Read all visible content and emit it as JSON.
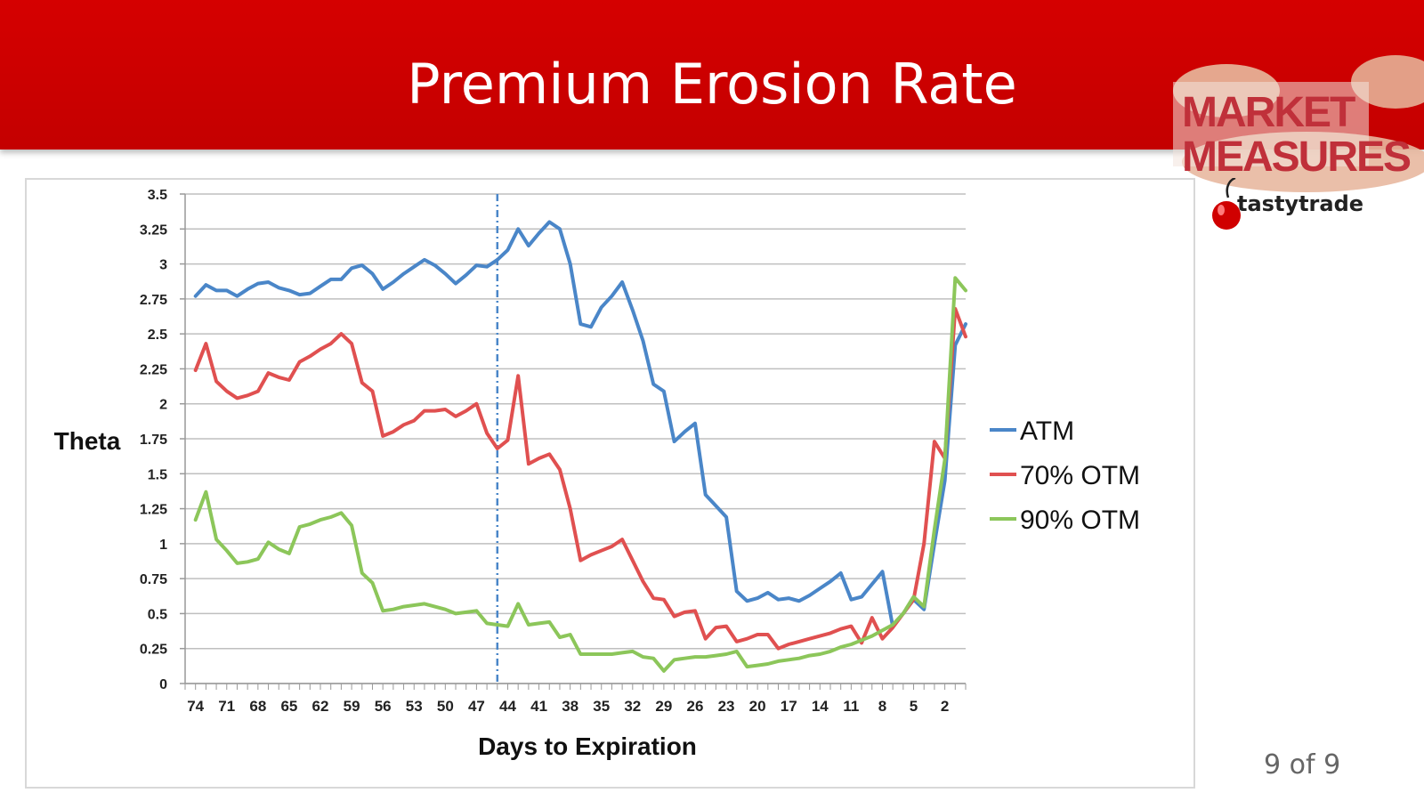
{
  "slide": {
    "title": "Premium Erosion Rate",
    "brand": "MARKET MEASURES",
    "sub_brand": "tastytrade",
    "page": "9 of 9",
    "accent_color": "#d50000"
  },
  "chart_data": {
    "type": "line",
    "title": "",
    "xlabel": "Days to Expiration",
    "ylabel": "Theta",
    "x_reversed": true,
    "xlim": [
      75,
      0
    ],
    "ylim": [
      0,
      3.5
    ],
    "x_ticks": [
      74,
      71,
      68,
      65,
      62,
      59,
      56,
      53,
      50,
      47,
      44,
      41,
      38,
      35,
      32,
      29,
      26,
      23,
      20,
      17,
      14,
      11,
      8,
      5,
      2
    ],
    "y_ticks": [
      "0",
      "0.25",
      "0.5",
      "0.75",
      "1",
      "1.25",
      "1.5",
      "1.75",
      "2",
      "2.25",
      "2.5",
      "2.75",
      "3",
      "3.25",
      "3.5"
    ],
    "y_tick_values": [
      0,
      0.25,
      0.5,
      0.75,
      1,
      1.25,
      1.5,
      1.75,
      2,
      2.25,
      2.5,
      2.75,
      3,
      3.25,
      3.5
    ],
    "grid": true,
    "legend_position": "right",
    "reference_line": {
      "x": 45,
      "style": "dash-dot",
      "color": "#4a86c8"
    },
    "series": [
      {
        "name": "ATM",
        "color": "#4a86c8",
        "x": [
          74,
          73,
          72,
          71,
          70,
          69,
          68,
          67,
          66,
          65,
          64,
          63,
          62,
          61,
          60,
          59,
          58,
          57,
          56,
          55,
          54,
          53,
          52,
          51,
          50,
          49,
          48,
          47,
          46,
          45,
          44,
          43,
          42,
          41,
          40,
          39,
          38,
          37,
          36,
          35,
          34,
          33,
          32,
          31,
          30,
          29,
          28,
          27,
          26,
          25,
          24,
          23,
          22,
          21,
          20,
          19,
          18,
          17,
          16,
          15,
          14,
          13,
          12,
          11,
          10,
          9,
          8,
          7,
          6,
          5,
          4,
          3,
          2,
          1,
          0
        ],
        "values": [
          2.77,
          2.85,
          2.81,
          2.81,
          2.77,
          2.82,
          2.86,
          2.87,
          2.83,
          2.81,
          2.78,
          2.79,
          2.84,
          2.89,
          2.89,
          2.97,
          2.99,
          2.93,
          2.82,
          2.87,
          2.93,
          2.98,
          3.03,
          2.99,
          2.93,
          2.86,
          2.92,
          2.99,
          2.98,
          3.03,
          3.1,
          3.25,
          3.13,
          3.22,
          3.3,
          3.25,
          3.0,
          2.57,
          2.55,
          2.69,
          2.77,
          2.87,
          2.67,
          2.45,
          2.14,
          2.09,
          1.73,
          1.8,
          1.86,
          1.35,
          1.27,
          1.19,
          0.66,
          0.59,
          0.61,
          0.65,
          0.6,
          0.61,
          0.59,
          0.63,
          0.68,
          0.73,
          0.79,
          0.6,
          0.62,
          0.71,
          0.8,
          0.41,
          0.5,
          0.6,
          0.53,
          1.0,
          1.45,
          2.42,
          2.57
        ]
      },
      {
        "name": "70% OTM",
        "color": "#e05050",
        "x": [
          74,
          73,
          72,
          71,
          70,
          69,
          68,
          67,
          66,
          65,
          64,
          63,
          62,
          61,
          60,
          59,
          58,
          57,
          56,
          55,
          54,
          53,
          52,
          51,
          50,
          49,
          48,
          47,
          46,
          45,
          44,
          43,
          42,
          41,
          40,
          39,
          38,
          37,
          36,
          35,
          34,
          33,
          32,
          31,
          30,
          29,
          28,
          27,
          26,
          25,
          24,
          23,
          22,
          21,
          20,
          19,
          18,
          17,
          16,
          15,
          14,
          13,
          12,
          11,
          10,
          9,
          8,
          7,
          6,
          5,
          4,
          3,
          2,
          1,
          0
        ],
        "values": [
          2.24,
          2.43,
          2.16,
          2.09,
          2.04,
          2.06,
          2.09,
          2.22,
          2.19,
          2.17,
          2.3,
          2.34,
          2.39,
          2.43,
          2.5,
          2.43,
          2.15,
          2.09,
          1.77,
          1.8,
          1.85,
          1.88,
          1.95,
          1.95,
          1.96,
          1.91,
          1.95,
          2.0,
          1.79,
          1.68,
          1.74,
          2.2,
          1.57,
          1.61,
          1.64,
          1.53,
          1.25,
          0.88,
          0.92,
          0.95,
          0.98,
          1.03,
          0.88,
          0.73,
          0.61,
          0.6,
          0.48,
          0.51,
          0.52,
          0.32,
          0.4,
          0.41,
          0.3,
          0.32,
          0.35,
          0.35,
          0.25,
          0.28,
          0.3,
          0.32,
          0.34,
          0.36,
          0.39,
          0.41,
          0.29,
          0.47,
          0.32,
          0.4,
          0.5,
          0.6,
          1.0,
          1.73,
          1.61,
          2.68,
          2.48
        ]
      },
      {
        "name": "90% OTM",
        "color": "#8cc65a",
        "x": [
          74,
          73,
          72,
          71,
          70,
          69,
          68,
          67,
          66,
          65,
          64,
          63,
          62,
          61,
          60,
          59,
          58,
          57,
          56,
          55,
          54,
          53,
          52,
          51,
          50,
          49,
          48,
          47,
          46,
          45,
          44,
          43,
          42,
          41,
          40,
          39,
          38,
          37,
          36,
          35,
          34,
          33,
          32,
          31,
          30,
          29,
          28,
          27,
          26,
          25,
          24,
          23,
          22,
          21,
          20,
          19,
          18,
          17,
          16,
          15,
          14,
          13,
          12,
          11,
          10,
          9,
          8,
          7,
          6,
          5,
          4,
          3,
          2,
          1,
          0
        ],
        "values": [
          1.17,
          1.37,
          1.03,
          0.95,
          0.86,
          0.87,
          0.89,
          1.01,
          0.96,
          0.93,
          1.12,
          1.14,
          1.17,
          1.19,
          1.22,
          1.13,
          0.79,
          0.72,
          0.52,
          0.53,
          0.55,
          0.56,
          0.57,
          0.55,
          0.53,
          0.5,
          0.51,
          0.52,
          0.43,
          0.42,
          0.41,
          0.57,
          0.42,
          0.43,
          0.44,
          0.33,
          0.35,
          0.21,
          0.21,
          0.21,
          0.21,
          0.22,
          0.23,
          0.19,
          0.18,
          0.09,
          0.17,
          0.18,
          0.19,
          0.19,
          0.2,
          0.21,
          0.23,
          0.12,
          0.13,
          0.14,
          0.16,
          0.17,
          0.18,
          0.2,
          0.21,
          0.23,
          0.26,
          0.28,
          0.31,
          0.34,
          0.38,
          0.42,
          0.5,
          0.62,
          0.55,
          1.1,
          1.6,
          2.9,
          2.81
        ]
      }
    ]
  }
}
